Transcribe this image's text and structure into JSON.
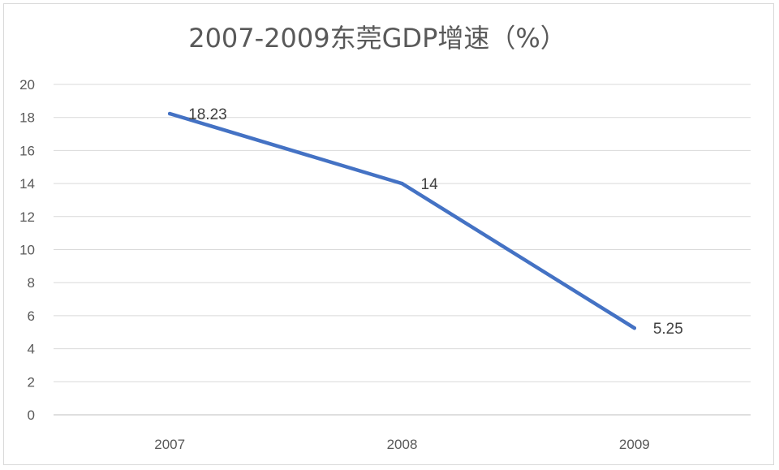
{
  "chart_data": {
    "type": "line",
    "title": "2007-2009东莞GDP增速（%）",
    "categories": [
      "2007",
      "2008",
      "2009"
    ],
    "series": [
      {
        "values": [
          18.23,
          14,
          5.25
        ],
        "labels": [
          "18.23",
          "14",
          "5.25"
        ]
      }
    ],
    "yticks": [
      "0",
      "2",
      "4",
      "6",
      "8",
      "10",
      "12",
      "14",
      "16",
      "18",
      "20"
    ],
    "ylim": [
      0,
      20
    ],
    "xlabel": "",
    "ylabel": "",
    "grid": true,
    "legend": "none",
    "colors": {
      "series": "#4472c4",
      "grid": "#d9d9d9",
      "text": "#595959"
    }
  }
}
